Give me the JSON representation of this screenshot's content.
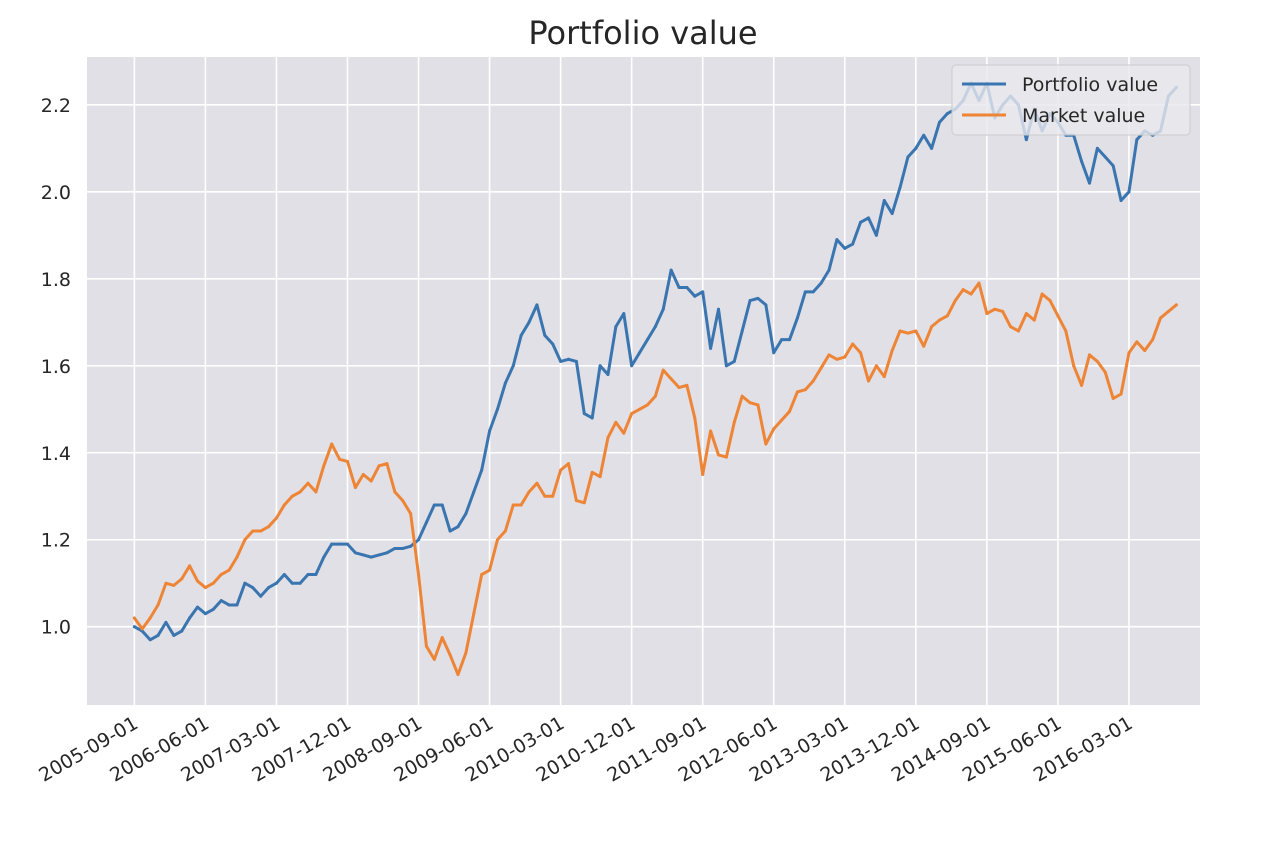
{
  "chart_data": {
    "type": "line",
    "title": "Portfolio value",
    "xlabel": "",
    "ylabel": "",
    "x_tick_labels": [
      "2005-09-01",
      "2006-06-01",
      "2007-03-01",
      "2007-12-01",
      "2008-09-01",
      "2009-06-01",
      "2010-03-01",
      "2010-12-01",
      "2011-09-01",
      "2012-06-01",
      "2013-03-01",
      "2013-12-01",
      "2014-09-01",
      "2015-06-01",
      "2016-03-01"
    ],
    "y_ticks": [
      1.0,
      1.2,
      1.4,
      1.6,
      1.8,
      2.0,
      2.2
    ],
    "y_tick_labels": [
      "1.0",
      "1.2",
      "1.4",
      "1.6",
      "1.8",
      "2.0",
      "2.2"
    ],
    "ylim": [
      0.82,
      2.31
    ],
    "xlim": [
      "2005-03-01",
      "2016-12-01"
    ],
    "x_start": "2005-09-01",
    "x_frequency": "monthly",
    "grid": true,
    "legend_position": "top-right",
    "background": "#e0e0e6",
    "series": [
      {
        "name": "Portfolio value",
        "color": "#3a75b0",
        "values": [
          1.0,
          0.99,
          0.97,
          0.98,
          1.01,
          0.98,
          0.99,
          1.02,
          1.045,
          1.03,
          1.04,
          1.06,
          1.05,
          1.05,
          1.1,
          1.09,
          1.07,
          1.09,
          1.1,
          1.12,
          1.1,
          1.1,
          1.12,
          1.12,
          1.16,
          1.19,
          1.19,
          1.19,
          1.17,
          1.165,
          1.16,
          1.165,
          1.17,
          1.18,
          1.18,
          1.185,
          1.2,
          1.24,
          1.28,
          1.28,
          1.22,
          1.23,
          1.26,
          1.31,
          1.36,
          1.45,
          1.5,
          1.56,
          1.6,
          1.67,
          1.7,
          1.74,
          1.67,
          1.65,
          1.61,
          1.615,
          1.61,
          1.49,
          1.48,
          1.6,
          1.58,
          1.69,
          1.72,
          1.6,
          1.63,
          1.66,
          1.69,
          1.73,
          1.82,
          1.78,
          1.78,
          1.76,
          1.77,
          1.64,
          1.73,
          1.6,
          1.61,
          1.68,
          1.75,
          1.755,
          1.74,
          1.63,
          1.66,
          1.66,
          1.71,
          1.77,
          1.77,
          1.79,
          1.82,
          1.89,
          1.87,
          1.88,
          1.93,
          1.94,
          1.9,
          1.98,
          1.95,
          2.01,
          2.08,
          2.1,
          2.13,
          2.1,
          2.16,
          2.18,
          2.19,
          2.21,
          2.25,
          2.21,
          2.25,
          2.17,
          2.2,
          2.22,
          2.2,
          2.12,
          2.19,
          2.14,
          2.18,
          2.16,
          2.13,
          2.13,
          2.07,
          2.02,
          2.1,
          2.08,
          2.06,
          1.98,
          2.0,
          2.12,
          2.14,
          2.13,
          2.14,
          2.22,
          2.24
        ]
      },
      {
        "name": "Market value",
        "color": "#ee8536",
        "values": [
          1.02,
          0.995,
          1.02,
          1.05,
          1.1,
          1.095,
          1.11,
          1.14,
          1.105,
          1.09,
          1.1,
          1.12,
          1.13,
          1.16,
          1.2,
          1.22,
          1.22,
          1.23,
          1.25,
          1.28,
          1.3,
          1.31,
          1.33,
          1.31,
          1.37,
          1.42,
          1.385,
          1.38,
          1.32,
          1.35,
          1.335,
          1.37,
          1.375,
          1.31,
          1.29,
          1.26,
          1.12,
          0.955,
          0.925,
          0.975,
          0.935,
          0.89,
          0.94,
          1.03,
          1.12,
          1.13,
          1.2,
          1.22,
          1.28,
          1.28,
          1.31,
          1.33,
          1.3,
          1.3,
          1.36,
          1.375,
          1.29,
          1.285,
          1.355,
          1.345,
          1.435,
          1.47,
          1.445,
          1.49,
          1.5,
          1.51,
          1.53,
          1.59,
          1.57,
          1.55,
          1.555,
          1.48,
          1.35,
          1.45,
          1.395,
          1.39,
          1.47,
          1.53,
          1.515,
          1.51,
          1.42,
          1.455,
          1.475,
          1.495,
          1.54,
          1.545,
          1.565,
          1.595,
          1.625,
          1.615,
          1.62,
          1.65,
          1.63,
          1.565,
          1.6,
          1.575,
          1.635,
          1.68,
          1.675,
          1.68,
          1.645,
          1.69,
          1.705,
          1.715,
          1.75,
          1.775,
          1.765,
          1.79,
          1.72,
          1.73,
          1.725,
          1.69,
          1.68,
          1.72,
          1.705,
          1.765,
          1.75,
          1.715,
          1.68,
          1.6,
          1.555,
          1.625,
          1.61,
          1.585,
          1.525,
          1.535,
          1.63,
          1.655,
          1.635,
          1.66,
          1.71,
          1.725,
          1.74
        ]
      }
    ]
  }
}
